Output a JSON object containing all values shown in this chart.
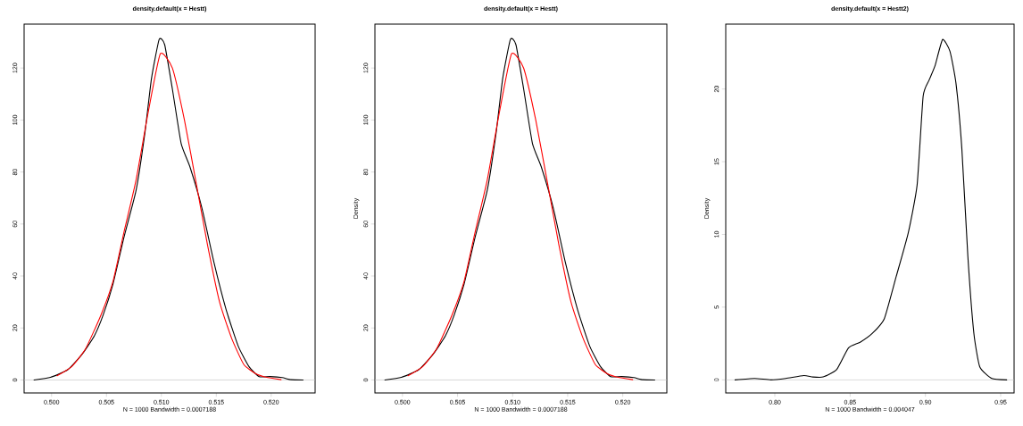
{
  "chart_data": [
    {
      "type": "line",
      "title": "density.default(x = Hestt)",
      "xlabel": "N = 1000   Bandwidth = 0.0007188",
      "xlim": [
        0.4975,
        0.524
      ],
      "ylim": [
        -5,
        136.9
      ],
      "xticks": [
        {
          "value": 0.5,
          "label": "0.500"
        },
        {
          "value": 0.505,
          "label": "0.505"
        },
        {
          "value": 0.51,
          "label": "0.510"
        },
        {
          "value": 0.515,
          "label": "0.515"
        },
        {
          "value": 0.52,
          "label": "0.520"
        }
      ],
      "yticks": [
        0,
        20,
        40,
        60,
        80,
        100,
        120
      ],
      "ref_lines": [
        {
          "axis": "y",
          "value": 0,
          "color": "#bebebe"
        }
      ],
      "series": [
        {
          "color": "#000000",
          "x": [
            0.4984,
            0.4999,
            0.5015,
            0.5028,
            0.5039,
            0.5047,
            0.5056,
            0.5066,
            0.5077,
            0.5085,
            0.5091,
            0.5098,
            0.5103,
            0.511,
            0.5118,
            0.5126,
            0.5137,
            0.5148,
            0.5159,
            0.517,
            0.518,
            0.5189,
            0.5199,
            0.521,
            0.5218,
            0.5229
          ],
          "values": [
            0,
            1,
            4,
            10,
            17,
            25,
            37,
            55,
            73,
            95,
            116,
            131,
            129,
            112,
            91,
            82,
            66,
            45,
            27,
            13,
            5,
            1.3,
            1.3,
            0.9,
            0.1,
            0
          ]
        },
        {
          "color": "#ff0000",
          "x": [
            0.5005,
            0.5018,
            0.5031,
            0.5045,
            0.5056,
            0.5066,
            0.5077,
            0.5088,
            0.5099,
            0.511,
            0.5121,
            0.5132,
            0.5142,
            0.5153,
            0.5164,
            0.5175,
            0.5186,
            0.5197,
            0.5209
          ],
          "values": [
            1.6,
            5,
            12,
            25,
            38,
            57,
            77,
            103,
            125.5,
            120,
            100,
            75,
            52,
            30,
            16,
            6,
            2.4,
            0.9,
            0.1
          ]
        }
      ]
    },
    {
      "type": "line",
      "title": "density.default(x = Hestt)",
      "xlabel": "N = 1000   Bandwidth = 0.0007188",
      "ylabel": "Density",
      "xlim": [
        0.4975,
        0.524
      ],
      "ylim": [
        -5,
        136.9
      ],
      "xticks": [
        {
          "value": 0.5,
          "label": "0.500"
        },
        {
          "value": 0.505,
          "label": "0.505"
        },
        {
          "value": 0.51,
          "label": "0.510"
        },
        {
          "value": 0.515,
          "label": "0.515"
        },
        {
          "value": 0.52,
          "label": "0.520"
        }
      ],
      "yticks": [
        0,
        20,
        40,
        60,
        80,
        100,
        120
      ],
      "ref_lines": [
        {
          "axis": "y",
          "value": 0,
          "color": "#bebebe"
        }
      ],
      "series": [
        {
          "color": "#000000",
          "x": [
            0.4984,
            0.4999,
            0.5015,
            0.5028,
            0.5039,
            0.5047,
            0.5056,
            0.5066,
            0.5077,
            0.5085,
            0.5091,
            0.5098,
            0.5103,
            0.511,
            0.5118,
            0.5126,
            0.5137,
            0.5148,
            0.5159,
            0.517,
            0.518,
            0.5189,
            0.5199,
            0.521,
            0.5218,
            0.5229
          ],
          "values": [
            0,
            1,
            4,
            10,
            17,
            25,
            37,
            55,
            73,
            95,
            116,
            131,
            129,
            112,
            91,
            82,
            66,
            45,
            27,
            13,
            5,
            1.3,
            1.3,
            0.9,
            0.1,
            0
          ]
        },
        {
          "color": "#ff0000",
          "x": [
            0.5005,
            0.5018,
            0.5031,
            0.5045,
            0.5056,
            0.5066,
            0.5077,
            0.5088,
            0.5099,
            0.511,
            0.5121,
            0.5132,
            0.5142,
            0.5153,
            0.5164,
            0.5175,
            0.5186,
            0.5197,
            0.5209
          ],
          "values": [
            1.6,
            5,
            12,
            25,
            38,
            57,
            77,
            103,
            125.5,
            120,
            100,
            75,
            52,
            30,
            16,
            6,
            2.4,
            0.9,
            0.1
          ]
        }
      ]
    },
    {
      "type": "line",
      "title": "density.default(x = Hestt2)",
      "xlabel": "N = 1000   Bandwidth = 0.004047",
      "ylabel": "Density",
      "xlim": [
        0.7674,
        0.9589
      ],
      "ylim": [
        -0.9,
        24.46
      ],
      "xticks": [
        {
          "value": 0.8,
          "label": "0.80"
        },
        {
          "value": 0.85,
          "label": "0.85"
        },
        {
          "value": 0.9,
          "label": "0.90"
        },
        {
          "value": 0.95,
          "label": "0.95"
        }
      ],
      "yticks": [
        0,
        5,
        10,
        15,
        20
      ],
      "ref_lines": [
        {
          "axis": "y",
          "value": 0,
          "color": "#bebebe"
        }
      ],
      "series": [
        {
          "color": "#000000",
          "x": [
            0.7736,
            0.7865,
            0.7974,
            0.8073,
            0.8192,
            0.8252,
            0.8321,
            0.841,
            0.8489,
            0.8569,
            0.8648,
            0.8727,
            0.8806,
            0.8886,
            0.8945,
            0.8985,
            0.9024,
            0.9064,
            0.9114,
            0.9163,
            0.9203,
            0.9242,
            0.9282,
            0.9322,
            0.9361,
            0.9441,
            0.954
          ],
          "values": [
            0,
            0.1,
            0,
            0.1,
            0.3,
            0.2,
            0.2,
            0.7,
            2.2,
            2.6,
            3.2,
            4.2,
            7.1,
            10.1,
            13.4,
            19.5,
            20.6,
            21.6,
            23.4,
            22.6,
            20.4,
            15.9,
            8.5,
            3.2,
            0.9,
            0.1,
            0
          ]
        }
      ]
    }
  ]
}
